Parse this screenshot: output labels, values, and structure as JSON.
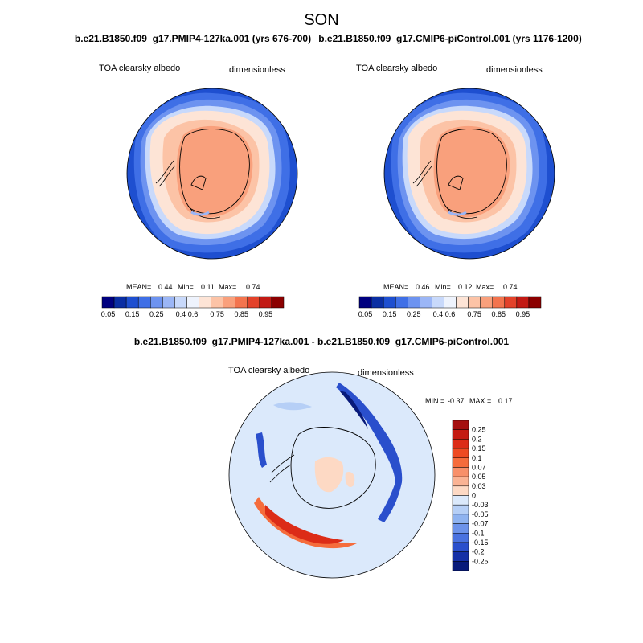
{
  "chart_data": {
    "type": "heatmap",
    "title": "SON",
    "panels": [
      {
        "id": "left",
        "title": "b.e21.B1850.f09_g17.PMIP4-127ka.001 (yrs 676-700)",
        "variable": "TOA clearsky albedo",
        "units": "dimensionless",
        "stats": {
          "mean_label": "MEAN=",
          "mean": "0.44",
          "min_label": "Min=",
          "min": "0.11",
          "max_label": "Max=",
          "max": "0.74"
        },
        "colorbar": {
          "labels": [
            "0.05",
            "0.15",
            "0.25",
            "0.4",
            "0.6",
            "0.75",
            "0.85",
            "0.95"
          ],
          "colors": [
            "#00007f",
            "#0a2ea3",
            "#1e4fd0",
            "#3f6fe6",
            "#6d93f0",
            "#9bb6f6",
            "#c8d9fb",
            "#eef3fd",
            "#fde4d6",
            "#fcc3a6",
            "#f9a07c",
            "#f3744e",
            "#e3422a",
            "#c21a14",
            "#8b0000"
          ]
        }
      },
      {
        "id": "right",
        "title": "b.e21.B1850.f09_g17.CMIP6-piControl.001 (yrs 1176-1200)",
        "variable": "TOA clearsky albedo",
        "units": "dimensionless",
        "stats": {
          "mean_label": "MEAN=",
          "mean": "0.46",
          "min_label": "Min=",
          "min": "0.12",
          "max_label": "Max=",
          "max": "0.74"
        },
        "colorbar": {
          "labels": [
            "0.05",
            "0.15",
            "0.25",
            "0.4",
            "0.6",
            "0.75",
            "0.85",
            "0.95"
          ],
          "colors": [
            "#00007f",
            "#0a2ea3",
            "#1e4fd0",
            "#3f6fe6",
            "#6d93f0",
            "#9bb6f6",
            "#c8d9fb",
            "#eef3fd",
            "#fde4d6",
            "#fcc3a6",
            "#f9a07c",
            "#f3744e",
            "#e3422a",
            "#c21a14",
            "#8b0000"
          ]
        }
      },
      {
        "id": "diff",
        "title": "b.e21.B1850.f09_g17.PMIP4-127ka.001 - b.e21.B1850.f09_g17.CMIP6-piControl.001",
        "variable": "TOA clearsky albedo",
        "units": "dimensionless",
        "stats": {
          "min_label": "MIN =",
          "min": "-0.37",
          "max_label": "MAX =",
          "max": "0.17"
        },
        "colorbar": {
          "labels": [
            "0.25",
            "0.2",
            "0.15",
            "0.1",
            "0.07",
            "0.05",
            "0.03",
            "0",
            "-0.03",
            "-0.05",
            "-0.07",
            "-0.1",
            "-0.15",
            "-0.2",
            "-0.25"
          ],
          "colors": [
            "#a50f0f",
            "#c41b12",
            "#dc2c17",
            "#ee4a22",
            "#f56c3c",
            "#f8906a",
            "#fab394",
            "#fdd9c4",
            "#dbe9fb",
            "#b6cff6",
            "#8fb3f0",
            "#6d93ea",
            "#4a72e0",
            "#2a4fcc",
            "#1530a6",
            "#081a7a"
          ]
        }
      }
    ]
  }
}
